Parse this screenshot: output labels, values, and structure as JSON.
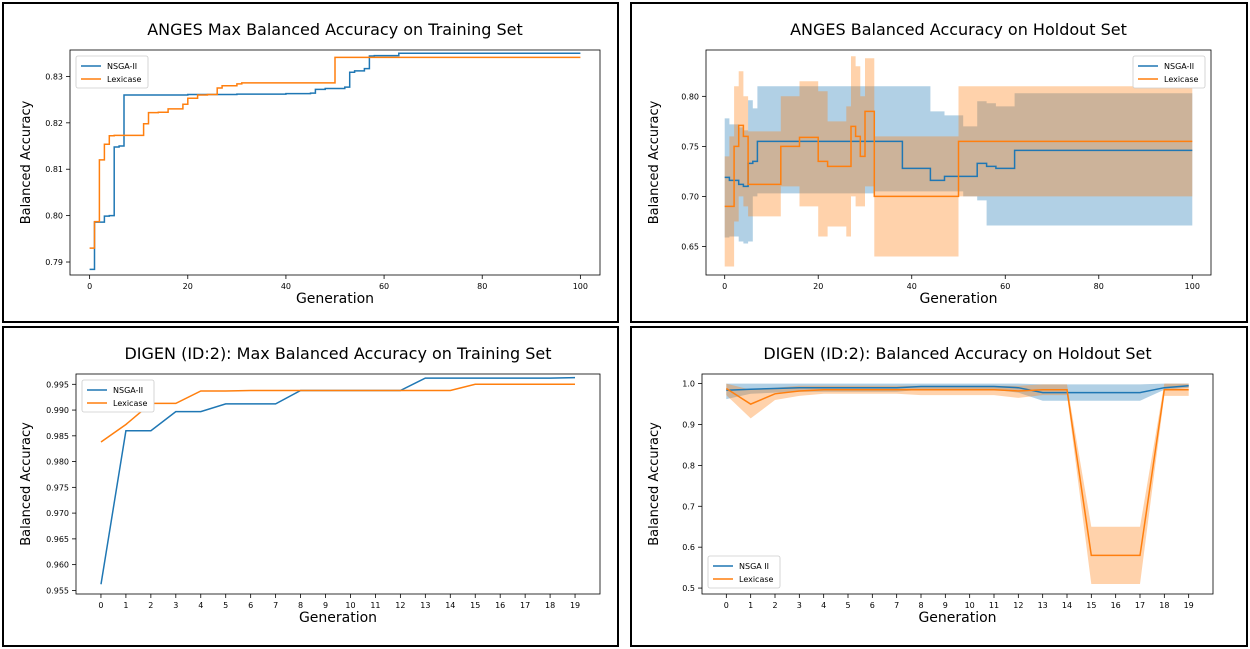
{
  "chart_data": [
    {
      "type": "line",
      "title": "ANGES Max Balanced Accuracy on Training Set",
      "xlabel": "Generation",
      "ylabel": "Balanced Accuracy",
      "xlim": [
        -4,
        104
      ],
      "ylim": [
        0.7872,
        0.8357
      ],
      "xticks": [
        0,
        20,
        40,
        60,
        80,
        100
      ],
      "yticks": [
        0.79,
        0.8,
        0.81,
        0.82,
        0.83
      ],
      "ytick_decimals": 2,
      "legend_position": "top-left",
      "step": true,
      "series": [
        {
          "name": "NSGA-II",
          "color": "#1f77b4",
          "points": [
            [
              0,
              0.7884
            ],
            [
              1,
              0.7986
            ],
            [
              3,
              0.7999
            ],
            [
              4,
              0.8
            ],
            [
              5,
              0.8148
            ],
            [
              6,
              0.815
            ],
            [
              7,
              0.826
            ],
            [
              20,
              0.8261
            ],
            [
              30,
              0.8262
            ],
            [
              39,
              0.8262
            ],
            [
              40,
              0.8263
            ],
            [
              45,
              0.8264
            ],
            [
              46,
              0.8272
            ],
            [
              48,
              0.8274
            ],
            [
              52,
              0.8277
            ],
            [
              53,
              0.8309
            ],
            [
              54,
              0.8312
            ],
            [
              56,
              0.8317
            ],
            [
              57,
              0.8344
            ],
            [
              58,
              0.8345
            ],
            [
              63,
              0.835
            ],
            [
              100,
              0.835
            ]
          ]
        },
        {
          "name": "Lexicase",
          "color": "#ff7f0e",
          "points": [
            [
              0,
              0.793
            ],
            [
              1,
              0.7987
            ],
            [
              2,
              0.812
            ],
            [
              3,
              0.8154
            ],
            [
              4,
              0.8172
            ],
            [
              5,
              0.8173
            ],
            [
              11,
              0.8198
            ],
            [
              12,
              0.8222
            ],
            [
              14,
              0.8223
            ],
            [
              16,
              0.823
            ],
            [
              19,
              0.824
            ],
            [
              20,
              0.8253
            ],
            [
              22,
              0.826
            ],
            [
              24,
              0.8261
            ],
            [
              26,
              0.8275
            ],
            [
              27,
              0.828
            ],
            [
              30,
              0.8284
            ],
            [
              31,
              0.8286
            ],
            [
              50,
              0.8341
            ],
            [
              100,
              0.8341
            ]
          ]
        }
      ]
    },
    {
      "type": "line",
      "title": "ANGES Balanced Accuracy on Holdout Set",
      "xlabel": "Generation",
      "ylabel": "Balanced Accuracy",
      "xlim": [
        -4,
        104
      ],
      "ylim": [
        0.6215,
        0.8463
      ],
      "xticks": [
        0,
        20,
        40,
        60,
        80,
        100
      ],
      "yticks": [
        0.65,
        0.7,
        0.75,
        0.8
      ],
      "ytick_decimals": 2,
      "legend_position": "top-right",
      "step": true,
      "series": [
        {
          "name": "NSGA-II",
          "color": "#1f77b4",
          "points": [
            [
              0,
              0.719
            ],
            [
              1,
              0.716
            ],
            [
              3,
              0.712
            ],
            [
              4,
              0.71
            ],
            [
              5,
              0.733
            ],
            [
              6,
              0.735
            ],
            [
              7,
              0.755
            ],
            [
              32,
              0.755
            ],
            [
              38,
              0.728
            ],
            [
              44,
              0.716
            ],
            [
              47,
              0.72
            ],
            [
              51,
              0.72
            ],
            [
              54,
              0.733
            ],
            [
              56,
              0.73
            ],
            [
              58,
              0.728
            ],
            [
              62,
              0.746
            ],
            [
              100,
              0.746
            ]
          ],
          "lower": [
            0.659,
            0.66,
            0.655,
            0.653,
            0.655,
            0.7,
            0.703,
            0.705,
            0.705,
            0.705,
            0.705,
            0.7,
            0.696,
            0.671,
            0.671,
            0.671,
            0.69
          ],
          "upper": [
            0.778,
            0.772,
            0.769,
            0.766,
            0.796,
            0.788,
            0.81,
            0.81,
            0.81,
            0.785,
            0.781,
            0.77,
            0.795,
            0.793,
            0.79,
            0.803,
            0.803
          ]
        },
        {
          "name": "Lexicase",
          "color": "#ff7f0e",
          "points": [
            [
              0,
              0.69
            ],
            [
              1,
              0.69
            ],
            [
              2,
              0.75
            ],
            [
              3,
              0.771
            ],
            [
              4,
              0.76
            ],
            [
              5,
              0.712
            ],
            [
              12,
              0.75
            ],
            [
              16,
              0.759
            ],
            [
              20,
              0.735
            ],
            [
              22,
              0.73
            ],
            [
              26,
              0.73
            ],
            [
              27,
              0.77
            ],
            [
              28,
              0.76
            ],
            [
              29,
              0.74
            ],
            [
              30,
              0.785
            ],
            [
              32,
              0.7
            ],
            [
              50,
              0.755
            ],
            [
              100,
              0.755
            ]
          ],
          "lower": [
            0.63,
            0.63,
            0.675,
            0.7,
            0.69,
            0.68,
            0.71,
            0.69,
            0.66,
            0.67,
            0.66,
            0.7,
            0.69,
            0.69,
            0.71,
            0.64,
            0.7,
            0.7
          ],
          "upper": [
            0.74,
            0.76,
            0.81,
            0.825,
            0.8,
            0.765,
            0.8,
            0.815,
            0.805,
            0.775,
            0.79,
            0.84,
            0.83,
            0.8,
            0.838,
            0.76,
            0.81,
            0.81
          ]
        }
      ]
    },
    {
      "type": "line",
      "title": "DIGEN (ID:2): Max Balanced Accuracy on Training Set",
      "xlabel": "Generation",
      "ylabel": "Balanced Accuracy",
      "xlim": [
        -1,
        20
      ],
      "ylim": [
        0.9543,
        0.997
      ],
      "xticks": [
        0,
        1,
        2,
        3,
        4,
        5,
        6,
        7,
        8,
        9,
        10,
        11,
        12,
        13,
        14,
        15,
        16,
        17,
        18,
        19
      ],
      "yticks": [
        0.955,
        0.96,
        0.965,
        0.97,
        0.975,
        0.98,
        0.985,
        0.99,
        0.995
      ],
      "ytick_decimals": 3,
      "legend_position": "top-left",
      "step": false,
      "series": [
        {
          "name": "NSGA-II",
          "color": "#1f77b4",
          "points": [
            [
              0,
              0.9562
            ],
            [
              1,
              0.986
            ],
            [
              2,
              0.986
            ],
            [
              3,
              0.9897
            ],
            [
              4,
              0.9897
            ],
            [
              5,
              0.9912
            ],
            [
              6,
              0.9912
            ],
            [
              7,
              0.9912
            ],
            [
              8,
              0.9938
            ],
            [
              9,
              0.9938
            ],
            [
              10,
              0.9938
            ],
            [
              11,
              0.9938
            ],
            [
              12,
              0.9938
            ],
            [
              13,
              0.9962
            ],
            [
              14,
              0.9962
            ],
            [
              15,
              0.9962
            ],
            [
              16,
              0.9962
            ],
            [
              17,
              0.9962
            ],
            [
              18,
              0.9962
            ],
            [
              19,
              0.9963
            ]
          ]
        },
        {
          "name": "Lexicase",
          "color": "#ff7f0e",
          "points": [
            [
              0,
              0.9838
            ],
            [
              1,
              0.9872
            ],
            [
              2,
              0.9913
            ],
            [
              3,
              0.9913
            ],
            [
              4,
              0.9937
            ],
            [
              5,
              0.9937
            ],
            [
              6,
              0.9938
            ],
            [
              7,
              0.9938
            ],
            [
              8,
              0.9938
            ],
            [
              9,
              0.9938
            ],
            [
              10,
              0.9938
            ],
            [
              11,
              0.9938
            ],
            [
              12,
              0.9938
            ],
            [
              13,
              0.9938
            ],
            [
              14,
              0.9938
            ],
            [
              15,
              0.995
            ],
            [
              16,
              0.995
            ],
            [
              17,
              0.995
            ],
            [
              18,
              0.995
            ],
            [
              19,
              0.995
            ]
          ]
        }
      ]
    },
    {
      "type": "line",
      "title": "DIGEN (ID:2): Balanced Accuracy on Holdout Set",
      "xlabel": "Generation",
      "ylabel": "Balanced Accuracy",
      "xlim": [
        -1,
        20
      ],
      "ylim": [
        0.4855,
        1.0235
      ],
      "xticks": [
        0,
        1,
        2,
        3,
        4,
        5,
        6,
        7,
        8,
        9,
        10,
        11,
        12,
        13,
        14,
        15,
        16,
        17,
        18,
        19
      ],
      "yticks": [
        0.5,
        0.6,
        0.7,
        0.8,
        0.9,
        1.0
      ],
      "ytick_decimals": 1,
      "legend_position": "bottom-left",
      "step": false,
      "series": [
        {
          "name": "NSGA II",
          "color": "#1f77b4",
          "points": [
            [
              0,
              0.984
            ],
            [
              1,
              0.986
            ],
            [
              2,
              0.988
            ],
            [
              3,
              0.99
            ],
            [
              4,
              0.99
            ],
            [
              5,
              0.99
            ],
            [
              6,
              0.99
            ],
            [
              7,
              0.99
            ],
            [
              8,
              0.993
            ],
            [
              9,
              0.993
            ],
            [
              10,
              0.993
            ],
            [
              11,
              0.993
            ],
            [
              12,
              0.99
            ],
            [
              13,
              0.978
            ],
            [
              14,
              0.978
            ],
            [
              15,
              0.978
            ],
            [
              16,
              0.978
            ],
            [
              17,
              0.978
            ],
            [
              18,
              0.99
            ],
            [
              19,
              0.995
            ]
          ],
          "lower": [
            0.962,
            0.975,
            0.978,
            0.98,
            0.98,
            0.98,
            0.98,
            0.98,
            0.985,
            0.985,
            0.985,
            0.985,
            0.978,
            0.958,
            0.958,
            0.958,
            0.958,
            0.958,
            0.985,
            0.99
          ],
          "upper": [
            1.0,
            1.0,
            1.0,
            1.0,
            1.0,
            1.0,
            1.0,
            1.0,
            1.0,
            1.0,
            1.0,
            1.0,
            1.0,
            0.998,
            0.998,
            0.998,
            0.998,
            0.998,
            1.0,
            1.0
          ]
        },
        {
          "name": "Lexicase",
          "color": "#ff7f0e",
          "points": [
            [
              0,
              0.988
            ],
            [
              1,
              0.95
            ],
            [
              2,
              0.975
            ],
            [
              3,
              0.982
            ],
            [
              4,
              0.985
            ],
            [
              5,
              0.985
            ],
            [
              6,
              0.985
            ],
            [
              7,
              0.985
            ],
            [
              8,
              0.985
            ],
            [
              9,
              0.985
            ],
            [
              10,
              0.985
            ],
            [
              11,
              0.985
            ],
            [
              12,
              0.982
            ],
            [
              13,
              0.985
            ],
            [
              14,
              0.985
            ],
            [
              15,
              0.58
            ],
            [
              16,
              0.58
            ],
            [
              17,
              0.58
            ],
            [
              18,
              0.985
            ],
            [
              19,
              0.985
            ]
          ],
          "lower": [
            0.972,
            0.915,
            0.96,
            0.97,
            0.975,
            0.975,
            0.975,
            0.975,
            0.972,
            0.972,
            0.972,
            0.972,
            0.965,
            0.972,
            0.972,
            0.51,
            0.51,
            0.51,
            0.97,
            0.97
          ],
          "upper": [
            1.0,
            0.985,
            0.99,
            0.995,
            0.995,
            0.995,
            0.995,
            0.995,
            0.995,
            0.995,
            0.995,
            0.995,
            0.995,
            0.998,
            0.998,
            0.65,
            0.65,
            0.65,
            1.0,
            1.0
          ]
        }
      ]
    }
  ]
}
